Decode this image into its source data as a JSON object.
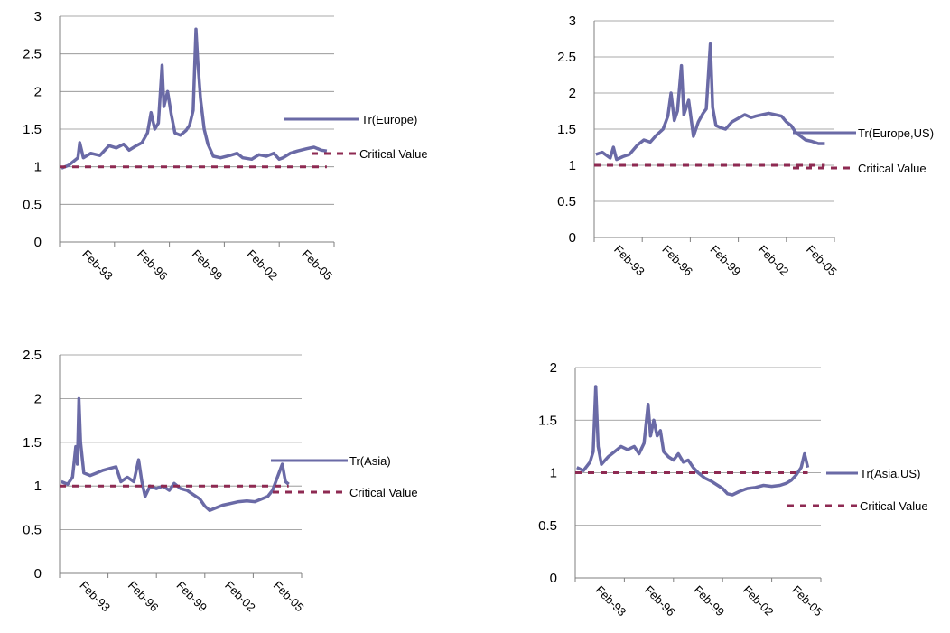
{
  "colors": {
    "series": "#6a6aa6",
    "critical": "#8e2a52",
    "grid": "#8c8c8c",
    "axis": "#7f7f7f",
    "text": "#000000"
  },
  "chart_data": [
    {
      "type": "line",
      "x_ticks": [
        "Feb-93",
        "Feb-96",
        "Feb-99",
        "Feb-02",
        "Feb-05"
      ],
      "y_ticks": [
        "0",
        "0.5",
        "1",
        "1.5",
        "2",
        "2.5",
        "3"
      ],
      "ylim": [
        0,
        3
      ],
      "xlim": [
        1992,
        2007
      ],
      "grid": true,
      "legend_position": "right",
      "series": [
        {
          "name": "Tr(Europe)",
          "style": "solid",
          "points": [
            [
              1992.1,
              0.98
            ],
            [
              1992.5,
              1.02
            ],
            [
              1993.0,
              1.12
            ],
            [
              1993.1,
              1.32
            ],
            [
              1993.3,
              1.12
            ],
            [
              1993.7,
              1.18
            ],
            [
              1994.2,
              1.15
            ],
            [
              1994.7,
              1.28
            ],
            [
              1995.1,
              1.25
            ],
            [
              1995.5,
              1.3
            ],
            [
              1995.8,
              1.22
            ],
            [
              1996.2,
              1.28
            ],
            [
              1996.5,
              1.32
            ],
            [
              1996.8,
              1.45
            ],
            [
              1997.0,
              1.72
            ],
            [
              1997.2,
              1.5
            ],
            [
              1997.4,
              1.58
            ],
            [
              1997.6,
              2.35
            ],
            [
              1997.7,
              1.8
            ],
            [
              1997.9,
              2.0
            ],
            [
              1998.1,
              1.7
            ],
            [
              1998.3,
              1.45
            ],
            [
              1998.6,
              1.42
            ],
            [
              1998.9,
              1.48
            ],
            [
              1999.1,
              1.55
            ],
            [
              1999.3,
              1.75
            ],
            [
              1999.45,
              2.83
            ],
            [
              1999.55,
              2.4
            ],
            [
              1999.7,
              1.9
            ],
            [
              1999.9,
              1.5
            ],
            [
              2000.1,
              1.3
            ],
            [
              2000.4,
              1.14
            ],
            [
              2000.8,
              1.12
            ],
            [
              2001.3,
              1.15
            ],
            [
              2001.7,
              1.18
            ],
            [
              2002.0,
              1.12
            ],
            [
              2002.5,
              1.1
            ],
            [
              2002.9,
              1.16
            ],
            [
              2003.3,
              1.14
            ],
            [
              2003.7,
              1.18
            ],
            [
              2004.0,
              1.1
            ],
            [
              2004.2,
              1.12
            ],
            [
              2004.6,
              1.18
            ],
            [
              2005.0,
              1.21
            ],
            [
              2005.5,
              1.24
            ],
            [
              2005.9,
              1.26
            ],
            [
              2006.3,
              1.22
            ],
            [
              2006.6,
              1.21
            ]
          ]
        },
        {
          "name": "Critical Value",
          "style": "dashed",
          "points": [
            [
              1992.0,
              1.0
            ],
            [
              2006.6,
              1.0
            ]
          ]
        }
      ]
    },
    {
      "type": "line",
      "x_ticks": [
        "Feb-93",
        "Feb-96",
        "Feb-99",
        "Feb-02",
        "Feb-05"
      ],
      "y_ticks": [
        "0",
        "0.5",
        "1",
        "1.5",
        "2",
        "2.5",
        "3"
      ],
      "ylim": [
        0,
        3
      ],
      "xlim": [
        1992,
        2007
      ],
      "grid": true,
      "legend_position": "right",
      "series": [
        {
          "name": "Tr(Europe,US)",
          "style": "solid",
          "points": [
            [
              1992.1,
              1.15
            ],
            [
              1992.5,
              1.18
            ],
            [
              1993.0,
              1.1
            ],
            [
              1993.2,
              1.25
            ],
            [
              1993.4,
              1.08
            ],
            [
              1993.8,
              1.12
            ],
            [
              1994.2,
              1.15
            ],
            [
              1994.7,
              1.28
            ],
            [
              1995.1,
              1.35
            ],
            [
              1995.5,
              1.32
            ],
            [
              1995.9,
              1.42
            ],
            [
              1996.3,
              1.5
            ],
            [
              1996.6,
              1.68
            ],
            [
              1996.8,
              2.0
            ],
            [
              1997.0,
              1.62
            ],
            [
              1997.2,
              1.75
            ],
            [
              1997.45,
              2.38
            ],
            [
              1997.6,
              1.7
            ],
            [
              1997.9,
              1.9
            ],
            [
              1998.2,
              1.4
            ],
            [
              1998.5,
              1.6
            ],
            [
              1998.8,
              1.72
            ],
            [
              1999.0,
              1.78
            ],
            [
              1999.25,
              2.68
            ],
            [
              1999.4,
              1.8
            ],
            [
              1999.6,
              1.55
            ],
            [
              1999.9,
              1.52
            ],
            [
              2000.2,
              1.5
            ],
            [
              2000.6,
              1.6
            ],
            [
              2001.0,
              1.65
            ],
            [
              2001.4,
              1.7
            ],
            [
              2001.8,
              1.66
            ],
            [
              2002.1,
              1.68
            ],
            [
              2002.5,
              1.7
            ],
            [
              2002.9,
              1.72
            ],
            [
              2003.3,
              1.7
            ],
            [
              2003.7,
              1.68
            ],
            [
              2004.0,
              1.6
            ],
            [
              2004.3,
              1.55
            ],
            [
              2004.6,
              1.45
            ],
            [
              2004.9,
              1.4
            ],
            [
              2005.2,
              1.35
            ],
            [
              2005.6,
              1.33
            ],
            [
              2006.0,
              1.3
            ],
            [
              2006.4,
              1.3
            ]
          ]
        },
        {
          "name": "Critical Value",
          "style": "dashed",
          "points": [
            [
              1992.0,
              1.0
            ],
            [
              2006.4,
              1.0
            ]
          ]
        }
      ]
    },
    {
      "type": "line",
      "x_ticks": [
        "Feb-93",
        "Feb-96",
        "Feb-99",
        "Feb-02",
        "Feb-05"
      ],
      "y_ticks": [
        "0",
        "0.5",
        "1",
        "1.5",
        "2",
        "2.5"
      ],
      "ylim": [
        0,
        2.5
      ],
      "xlim": [
        1992,
        2007
      ],
      "grid": true,
      "legend_position": "right",
      "series": [
        {
          "name": "Tr(Asia)",
          "style": "solid",
          "points": [
            [
              1992.1,
              1.05
            ],
            [
              1992.5,
              1.02
            ],
            [
              1992.8,
              1.1
            ],
            [
              1993.0,
              1.45
            ],
            [
              1993.1,
              1.25
            ],
            [
              1993.2,
              2.0
            ],
            [
              1993.3,
              1.5
            ],
            [
              1993.5,
              1.15
            ],
            [
              1993.9,
              1.12
            ],
            [
              1994.3,
              1.15
            ],
            [
              1994.7,
              1.18
            ],
            [
              1995.1,
              1.2
            ],
            [
              1995.5,
              1.22
            ],
            [
              1995.8,
              1.05
            ],
            [
              1996.2,
              1.1
            ],
            [
              1996.6,
              1.05
            ],
            [
              1996.9,
              1.3
            ],
            [
              1997.1,
              1.05
            ],
            [
              1997.3,
              0.88
            ],
            [
              1997.6,
              1.0
            ],
            [
              1998.0,
              0.97
            ],
            [
              1998.4,
              1.0
            ],
            [
              1998.8,
              0.95
            ],
            [
              1999.1,
              1.03
            ],
            [
              1999.5,
              0.97
            ],
            [
              1999.9,
              0.95
            ],
            [
              2000.3,
              0.9
            ],
            [
              2000.7,
              0.85
            ],
            [
              2001.0,
              0.77
            ],
            [
              2001.3,
              0.72
            ],
            [
              2001.7,
              0.75
            ],
            [
              2002.1,
              0.78
            ],
            [
              2002.6,
              0.8
            ],
            [
              2003.1,
              0.82
            ],
            [
              2003.6,
              0.83
            ],
            [
              2004.1,
              0.82
            ],
            [
              2004.5,
              0.85
            ],
            [
              2004.9,
              0.88
            ],
            [
              2005.2,
              0.95
            ],
            [
              2005.5,
              1.1
            ],
            [
              2005.8,
              1.25
            ],
            [
              2006.0,
              1.05
            ],
            [
              2006.2,
              1.02
            ]
          ]
        },
        {
          "name": "Critical Value",
          "style": "dashed",
          "points": [
            [
              1992.0,
              1.0
            ],
            [
              2006.2,
              1.0
            ]
          ]
        }
      ]
    },
    {
      "type": "line",
      "x_ticks": [
        "Feb-93",
        "Feb-96",
        "Feb-99",
        "Feb-02",
        "Feb-05"
      ],
      "y_ticks": [
        "0",
        "0.5",
        "1",
        "1.5",
        "2"
      ],
      "ylim": [
        0,
        2
      ],
      "xlim": [
        1992,
        2007
      ],
      "grid": true,
      "legend_position": "right",
      "series": [
        {
          "name": "Tr(Asia,US)",
          "style": "solid",
          "points": [
            [
              1992.1,
              1.05
            ],
            [
              1992.5,
              1.02
            ],
            [
              1992.9,
              1.1
            ],
            [
              1993.1,
              1.2
            ],
            [
              1993.25,
              1.82
            ],
            [
              1993.4,
              1.25
            ],
            [
              1993.6,
              1.08
            ],
            [
              1994.0,
              1.15
            ],
            [
              1994.4,
              1.2
            ],
            [
              1994.8,
              1.25
            ],
            [
              1995.2,
              1.22
            ],
            [
              1995.6,
              1.25
            ],
            [
              1995.9,
              1.18
            ],
            [
              1996.2,
              1.28
            ],
            [
              1996.45,
              1.65
            ],
            [
              1996.6,
              1.35
            ],
            [
              1996.8,
              1.5
            ],
            [
              1997.0,
              1.35
            ],
            [
              1997.2,
              1.4
            ],
            [
              1997.4,
              1.2
            ],
            [
              1997.7,
              1.15
            ],
            [
              1998.0,
              1.12
            ],
            [
              1998.3,
              1.18
            ],
            [
              1998.6,
              1.1
            ],
            [
              1998.9,
              1.12
            ],
            [
              1999.2,
              1.05
            ],
            [
              1999.5,
              1.0
            ],
            [
              1999.9,
              0.95
            ],
            [
              2000.3,
              0.92
            ],
            [
              2000.7,
              0.88
            ],
            [
              2001.0,
              0.85
            ],
            [
              2001.3,
              0.8
            ],
            [
              2001.6,
              0.79
            ],
            [
              2002.0,
              0.82
            ],
            [
              2002.5,
              0.85
            ],
            [
              2003.0,
              0.86
            ],
            [
              2003.5,
              0.88
            ],
            [
              2004.0,
              0.87
            ],
            [
              2004.5,
              0.88
            ],
            [
              2004.9,
              0.9
            ],
            [
              2005.2,
              0.93
            ],
            [
              2005.5,
              0.98
            ],
            [
              2005.8,
              1.05
            ],
            [
              2006.0,
              1.18
            ],
            [
              2006.2,
              1.05
            ]
          ]
        },
        {
          "name": "Critical Value",
          "style": "dashed",
          "points": [
            [
              1992.0,
              1.0
            ],
            [
              2006.2,
              1.0
            ]
          ]
        }
      ]
    }
  ]
}
